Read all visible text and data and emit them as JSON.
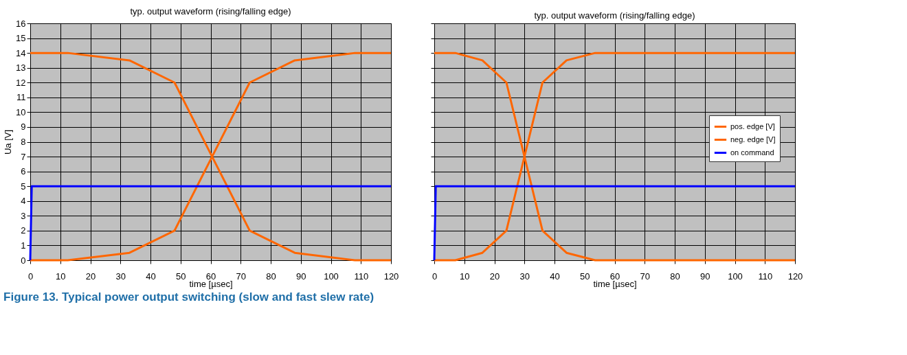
{
  "chart_data": [
    {
      "type": "line",
      "title": "typ. output  waveform (rising/falling  edge)",
      "xlabel": "time [µsec]",
      "ylabel": "Ua [V]",
      "xlim": [
        0,
        120
      ],
      "xticks": [
        0,
        10,
        20,
        30,
        40,
        50,
        60,
        70,
        80,
        90,
        100,
        110,
        120
      ],
      "ylim": [
        0,
        16
      ],
      "yticks": [
        0,
        1,
        2,
        3,
        4,
        5,
        6,
        7,
        8,
        9,
        10,
        11,
        12,
        13,
        14,
        15,
        16
      ],
      "grid": true,
      "legend": false,
      "marker": "none",
      "line_style": "solid",
      "series": [
        {
          "color": "#ff6600",
          "x": [
            0,
            12.5,
            33,
            48,
            60.5,
            73,
            88,
            108,
            120
          ],
          "values": [
            0,
            0,
            0.5,
            2,
            7,
            12,
            13.5,
            14,
            14
          ]
        },
        {
          "color": "#ff6600",
          "x": [
            0,
            12.5,
            33,
            48,
            60.5,
            73,
            88,
            108,
            120
          ],
          "values": [
            14,
            14,
            13.5,
            12,
            7,
            2,
            0.5,
            0,
            0
          ]
        },
        {
          "color": "#0000ff",
          "x": [
            0,
            0.5,
            120
          ],
          "values": [
            0,
            5,
            5
          ]
        }
      ]
    },
    {
      "type": "line",
      "title": "typ. output waveform (rising/falling edge)",
      "xlabel": "time [µsec]",
      "xlim": [
        0,
        120
      ],
      "xticks": [
        0,
        10,
        20,
        30,
        40,
        50,
        60,
        70,
        80,
        90,
        100,
        110,
        120
      ],
      "ylim": [
        0,
        16
      ],
      "yticks": [
        0,
        1,
        2,
        3,
        4,
        5,
        6,
        7,
        8,
        9,
        10,
        11,
        12,
        13,
        14,
        15,
        16
      ],
      "tick_labels": "x",
      "grid": true,
      "legend": "right",
      "marker": "none",
      "line_style": "solid",
      "annotations": [
        "Figure 13.  Typical power output switching (slow and fast slew rate)"
      ],
      "series": [
        {
          "name": "pos. edge [V]",
          "color": "#ff6600",
          "x": [
            0,
            7,
            16,
            24,
            30,
            36,
            44,
            53.5,
            120
          ],
          "values": [
            0,
            0,
            0.5,
            2,
            7,
            12,
            13.5,
            14,
            14
          ]
        },
        {
          "name": "neg. edge [V]",
          "color": "#ff6600",
          "x": [
            0,
            7,
            16,
            24,
            30,
            36,
            44,
            53.5,
            120
          ],
          "values": [
            14,
            14,
            13.5,
            12,
            7,
            2,
            0.5,
            0,
            0
          ]
        },
        {
          "name": "on command",
          "color": "#0000ff",
          "x": [
            0,
            0.5,
            120
          ],
          "values": [
            0,
            5,
            5
          ]
        }
      ]
    }
  ]
}
